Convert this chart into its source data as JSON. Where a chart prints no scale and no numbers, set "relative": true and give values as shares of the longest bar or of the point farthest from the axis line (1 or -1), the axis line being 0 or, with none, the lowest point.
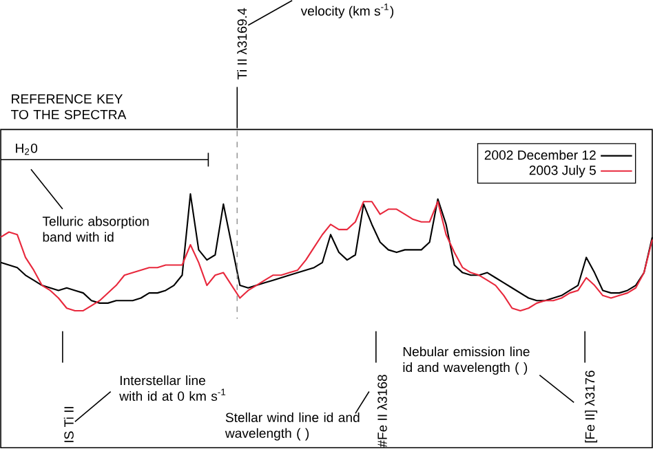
{
  "chart_data": {
    "type": "line",
    "relative": true,
    "legend": "top right",
    "categories": [
      null,
      null,
      null,
      null,
      null,
      null,
      null,
      null,
      null,
      null,
      null,
      null,
      null,
      null,
      null,
      null,
      null,
      null,
      null,
      null,
      null,
      null,
      null,
      null,
      null,
      null,
      null,
      null,
      null,
      null,
      null,
      null,
      null,
      null,
      null,
      null,
      null,
      null,
      null,
      null,
      null,
      null,
      null,
      null,
      null,
      null,
      null,
      null,
      null,
      null,
      null,
      null,
      null,
      null,
      null,
      null,
      null,
      null,
      null,
      null,
      null,
      null,
      null,
      null,
      null,
      null,
      null,
      null,
      null,
      null,
      null,
      null,
      null,
      null,
      null,
      null,
      null,
      null,
      null,
      null
    ],
    "series": [
      {
        "name": "2002 December 12",
        "color": "#000000",
        "values": [
          0.73,
          0.72,
          0.71,
          0.68,
          0.66,
          0.64,
          0.63,
          0.62,
          0.63,
          0.62,
          0.61,
          0.58,
          0.57,
          0.57,
          0.58,
          0.58,
          0.58,
          0.59,
          0.61,
          0.61,
          0.62,
          0.64,
          0.68,
          1.0,
          0.78,
          0.74,
          0.76,
          0.96,
          0.8,
          0.64,
          0.63,
          0.64,
          0.65,
          0.66,
          0.67,
          0.68,
          0.69,
          0.7,
          0.71,
          0.73,
          0.84,
          0.77,
          0.74,
          0.76,
          0.96,
          0.88,
          0.81,
          0.78,
          0.77,
          0.78,
          0.78,
          0.78,
          0.81,
          0.98,
          0.88,
          0.72,
          0.69,
          0.68,
          0.68,
          0.69,
          0.67,
          0.65,
          0.63,
          0.61,
          0.59,
          0.58,
          0.58,
          0.59,
          0.6,
          0.62,
          0.64,
          0.75,
          0.69,
          0.62,
          0.61,
          0.61,
          0.62,
          0.64,
          0.69,
          0.83
        ]
      },
      {
        "name": "2003 July 5",
        "color": "#e8283c",
        "values": [
          0.83,
          0.85,
          0.84,
          0.75,
          0.7,
          0.64,
          0.62,
          0.59,
          0.55,
          0.54,
          0.54,
          0.56,
          0.58,
          0.61,
          0.64,
          0.68,
          0.69,
          0.7,
          0.71,
          0.71,
          0.72,
          0.72,
          0.72,
          0.8,
          0.73,
          0.64,
          0.68,
          0.69,
          0.64,
          0.59,
          0.62,
          0.64,
          0.66,
          0.68,
          0.68,
          0.69,
          0.7,
          0.74,
          0.79,
          0.84,
          0.88,
          0.86,
          0.86,
          0.89,
          0.97,
          0.97,
          0.92,
          0.94,
          0.94,
          0.92,
          0.9,
          0.89,
          0.89,
          0.97,
          0.84,
          0.77,
          0.71,
          0.69,
          0.68,
          0.66,
          0.64,
          0.6,
          0.55,
          0.54,
          0.55,
          0.57,
          0.58,
          0.58,
          0.59,
          0.61,
          0.62,
          0.67,
          0.64,
          0.6,
          0.59,
          0.6,
          0.61,
          0.63,
          0.69,
          0.82
        ]
      }
    ],
    "annotations": [
      "REFERENCE KEY TO THE SPECTRA",
      "velocity (km s$^{-1}$)",
      "H$_{2}$0",
      "Telluric absorption band with id",
      "IS Ti II",
      "Interstellar line with id at 0 km s$^{-1}$",
      "Stellar wind line id and wavelength ( )",
      "#Fe II λ3168",
      "Nebular emission line id and wavelength ( )",
      "[Fe II] λ3176",
      "Ti II λ3169.4"
    ]
  }
}
